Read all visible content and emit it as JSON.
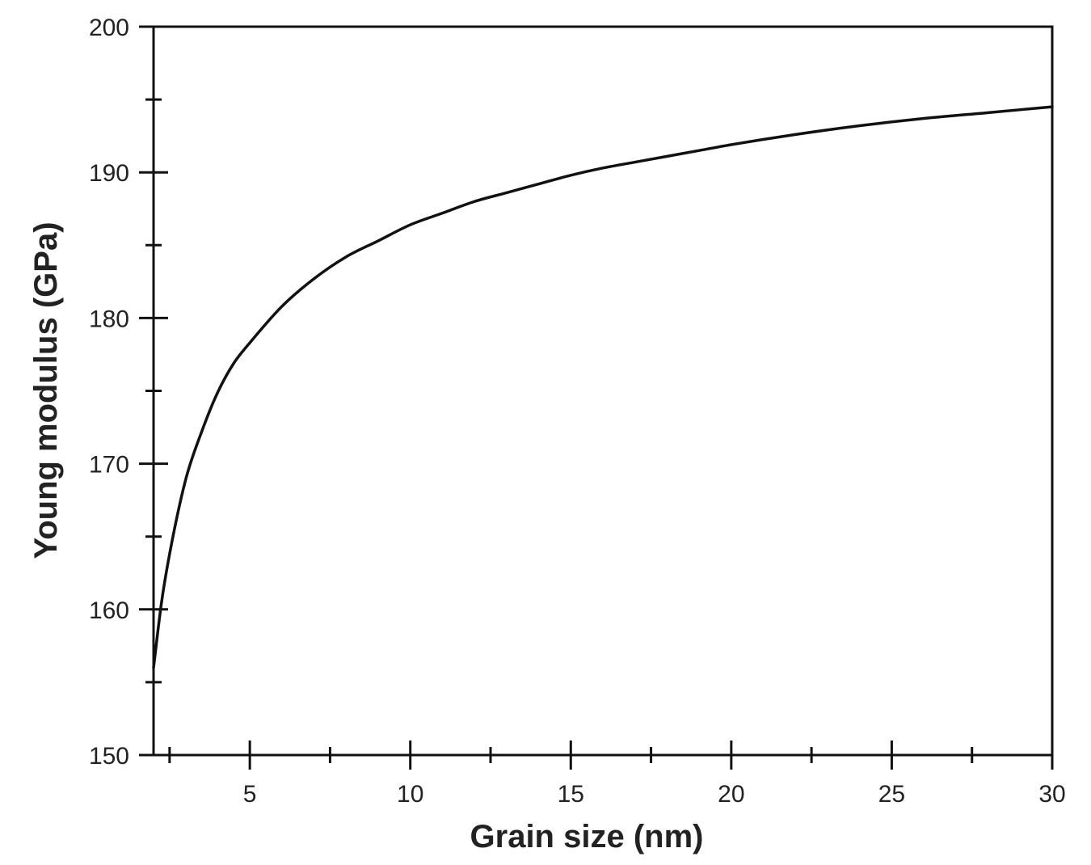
{
  "chart_data": {
    "type": "line",
    "title": "",
    "xlabel": "Grain size (nm)",
    "ylabel": "Young modulus (GPa)",
    "xlim": [
      2,
      30
    ],
    "ylim": [
      150,
      200
    ],
    "x_major_ticks": [
      5,
      10,
      15,
      20,
      25,
      30
    ],
    "x_minor_ticks": [
      2.5,
      7.5,
      12.5,
      17.5,
      22.5,
      27.5
    ],
    "y_major_ticks": [
      150,
      160,
      170,
      180,
      190,
      200
    ],
    "y_minor_ticks": [
      155,
      165,
      175,
      185,
      195
    ],
    "x_tick_labels": [
      "5",
      "10",
      "15",
      "20",
      "25",
      "30"
    ],
    "y_tick_labels": [
      "150",
      "160",
      "170",
      "180",
      "190",
      "200"
    ],
    "grid": false,
    "legend": "none",
    "series": [
      {
        "color": "#111111",
        "x": [
          2.0,
          2.25,
          2.5,
          3.0,
          3.5,
          4.0,
          4.5,
          5.0,
          6.0,
          7.0,
          8.0,
          9.0,
          10.0,
          11.0,
          12.0,
          13.0,
          14.0,
          15.0,
          16.0,
          17.0,
          18.0,
          19.0,
          20.0,
          22.0,
          24.0,
          26.0,
          28.0,
          30.0
        ],
        "y": [
          156.0,
          160.5,
          163.8,
          168.9,
          172.2,
          174.9,
          176.9,
          178.3,
          180.8,
          182.7,
          184.2,
          185.3,
          186.4,
          187.2,
          188.0,
          188.6,
          189.2,
          189.8,
          190.3,
          190.7,
          191.1,
          191.5,
          191.9,
          192.6,
          193.2,
          193.7,
          194.1,
          194.5
        ]
      }
    ]
  }
}
